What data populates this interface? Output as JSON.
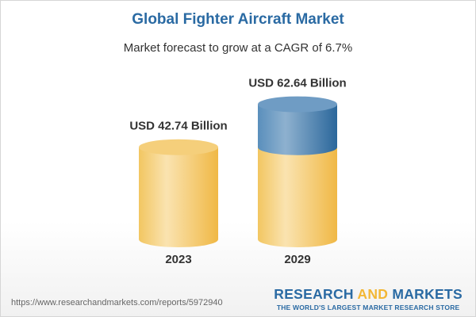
{
  "title": "Global Fighter Aircraft Market",
  "subtitle": "Market forecast to grow at a CAGR of 6.7%",
  "url": "https://www.researchandmarkets.com/reports/5972940",
  "logo": {
    "line1_a": "RESEARCH ",
    "line1_b": "AND",
    "line1_c": " MARKETS",
    "tagline": "THE WORLD'S LARGEST MARKET RESEARCH STORE"
  },
  "colors": {
    "base": "#f3c46a",
    "growth": "#3f7fb3",
    "title": "#2a6aa3"
  },
  "chart_data": {
    "type": "bar",
    "style": "3d-cylinder",
    "categories": [
      "2023",
      "2029"
    ],
    "values": [
      42.74,
      62.64
    ],
    "data_labels": [
      "USD 42.74 Billion",
      "USD 62.64 Billion"
    ],
    "title": "Global Fighter Aircraft Market",
    "subtitle": "Market forecast to grow at a CAGR of 6.7%",
    "grid": false
  }
}
